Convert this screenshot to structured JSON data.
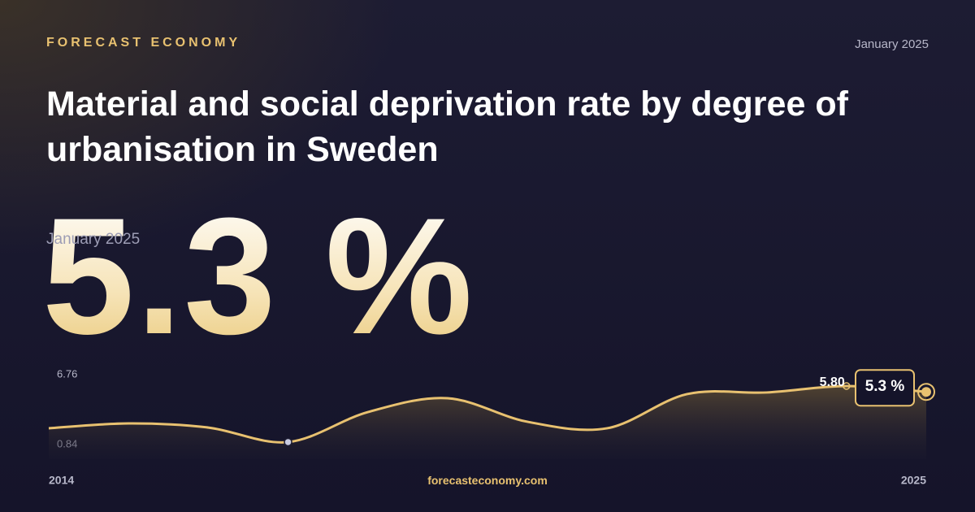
{
  "brand": "FORECAST ECONOMY",
  "date": "January 2025",
  "title": "Material and social deprivation rate by degree of urbanisation in Sweden",
  "highlight": {
    "date": "January 2025",
    "value": "5.3 %"
  },
  "footer": "forecasteconomy.com",
  "chart_data": {
    "type": "line",
    "x": [
      2014,
      2015,
      2016,
      2017,
      2018,
      2019,
      2020,
      2021,
      2022,
      2023,
      2024,
      2025
    ],
    "values": [
      2.22,
      2.63,
      2.28,
      1.05,
      3.59,
      4.76,
      2.77,
      2.22,
      5.11,
      5.25,
      5.8,
      5.3
    ],
    "value_labels": [
      null,
      null,
      null,
      null,
      null,
      null,
      null,
      null,
      null,
      null,
      "5.80",
      "5.3 %"
    ],
    "color": "#e8c170",
    "xlim": [
      2014,
      2025
    ],
    "xticks": [
      2014,
      2025
    ],
    "ylim": [
      0.84,
      6.76
    ],
    "yticks": [
      0.84,
      6.76
    ]
  }
}
